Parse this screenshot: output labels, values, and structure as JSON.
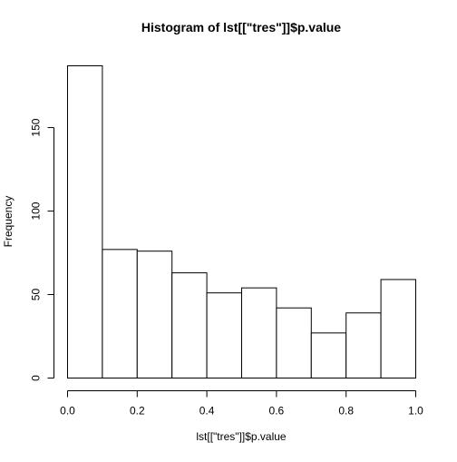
{
  "chart_data": {
    "type": "bar",
    "title": "Histogram of lst[[\"tres\"]]$p.value",
    "xlabel": "lst[[\"tres\"]]$p.value",
    "ylabel": "Frequency",
    "bins": [
      {
        "start": 0.0,
        "end": 0.1,
        "count": 187
      },
      {
        "start": 0.1,
        "end": 0.2,
        "count": 77
      },
      {
        "start": 0.2,
        "end": 0.3,
        "count": 76
      },
      {
        "start": 0.3,
        "end": 0.4,
        "count": 63
      },
      {
        "start": 0.4,
        "end": 0.5,
        "count": 51
      },
      {
        "start": 0.5,
        "end": 0.6,
        "count": 54
      },
      {
        "start": 0.6,
        "end": 0.7,
        "count": 42
      },
      {
        "start": 0.7,
        "end": 0.8,
        "count": 27
      },
      {
        "start": 0.8,
        "end": 0.9,
        "count": 39
      },
      {
        "start": 0.9,
        "end": 1.0,
        "count": 59
      }
    ],
    "xlim": [
      0,
      1
    ],
    "ylim": [
      0,
      187
    ],
    "x_ticks": [
      "0.0",
      "0.2",
      "0.4",
      "0.6",
      "0.8",
      "1.0"
    ],
    "y_ticks": [
      "0",
      "50",
      "100",
      "150"
    ],
    "grid": false,
    "colors": {
      "bar_fill": "#ffffff",
      "bar_stroke": "#000000",
      "axis": "#000000",
      "text": "#000000",
      "background": "#ffffff"
    }
  }
}
